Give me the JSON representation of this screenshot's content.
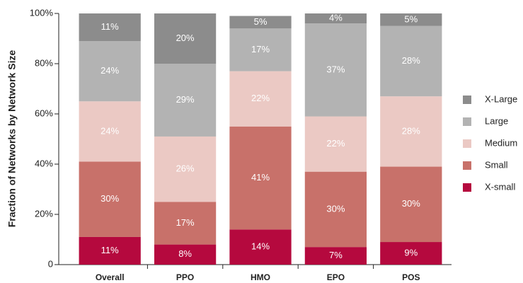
{
  "chart_data": {
    "type": "stacked_bar",
    "y_label": "Fraction of Networks by Network Size",
    "categories": [
      "Overall",
      "PPO",
      "HMO",
      "EPO",
      "POS"
    ],
    "series": [
      {
        "name": "X-small",
        "color": "#b5093e",
        "values": [
          11,
          8,
          14,
          7,
          9
        ],
        "value_labels": [
          "11%",
          "8%",
          "14%",
          "7%",
          "9%"
        ]
      },
      {
        "name": "Small",
        "color": "#c8716a",
        "values": [
          30,
          17,
          41,
          30,
          30
        ],
        "value_labels": [
          "30%",
          "17%",
          "41%",
          "30%",
          "30%"
        ]
      },
      {
        "name": "Medium",
        "color": "#ebc9c4",
        "values": [
          24,
          26,
          22,
          22,
          28
        ],
        "value_labels": [
          "24%",
          "26%",
          "22%",
          "22%",
          "28%"
        ]
      },
      {
        "name": "Large",
        "color": "#b3b3b3",
        "values": [
          24,
          29,
          17,
          37,
          28
        ],
        "value_labels": [
          "24%",
          "29%",
          "17%",
          "37%",
          "28%"
        ]
      },
      {
        "name": "X-Large",
        "color": "#8c8c8c",
        "values": [
          11,
          20,
          5,
          4,
          5
        ],
        "value_labels": [
          "11%",
          "20%",
          "5%",
          "4%",
          "5%"
        ]
      }
    ],
    "ylim": [
      0,
      100
    ],
    "yticks": [
      0,
      {
        "value": 20,
        "label": "20%"
      },
      {
        "value": 40,
        "label": "40%"
      },
      {
        "value": 60,
        "label": "60%"
      },
      {
        "value": 80,
        "label": "80%"
      },
      {
        "value": 100,
        "label": "100%"
      }
    ],
    "legend": "right"
  }
}
